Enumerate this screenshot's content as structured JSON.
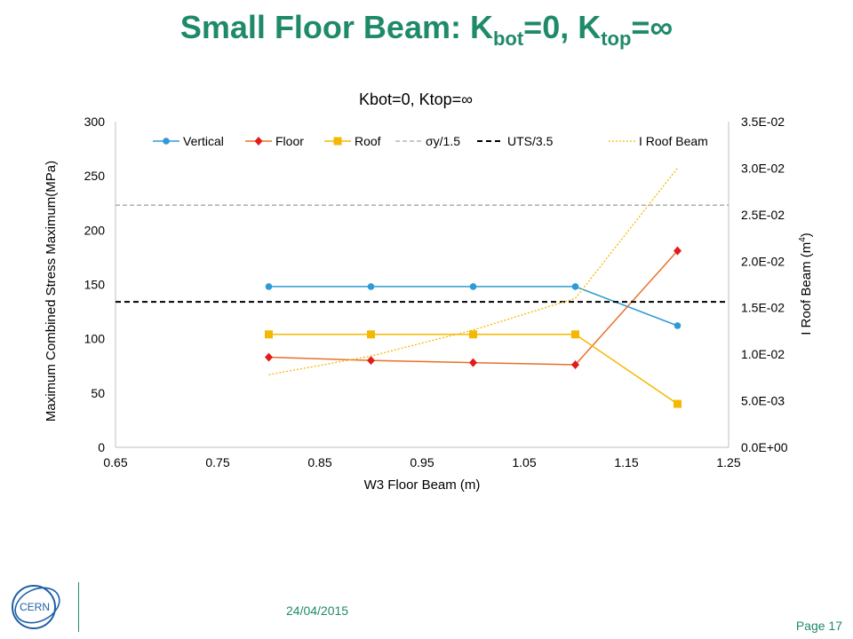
{
  "slide": {
    "title_main": "Small Floor Beam: K",
    "title_sub1": "bot",
    "title_mid": "=0, K",
    "title_sub2": "top",
    "title_end": "=∞",
    "date": "24/04/2015",
    "page": "Page 17",
    "logo_text": "CERN"
  },
  "chart_data": {
    "type": "line",
    "title": "Kbot=0, Ktop=∞",
    "xlabel": "W3 Floor Beam (m)",
    "ylabel": "Maximum Combined Stress Maximum(MPa)",
    "y2label_pre": "I Roof Beam (m",
    "y2label_sup": "4",
    "y2label_post": ")",
    "xlim": [
      0.65,
      1.25
    ],
    "ylim": [
      0,
      300
    ],
    "y2lim": [
      0,
      0.035
    ],
    "xticks": [
      "0.65",
      "0.75",
      "0.85",
      "0.95",
      "1.05",
      "1.15",
      "1.25"
    ],
    "yticks": [
      "0",
      "50",
      "100",
      "150",
      "200",
      "250",
      "300"
    ],
    "y2ticks": [
      "0.0E+00",
      "5.0E-03",
      "1.0E-02",
      "1.5E-02",
      "2.0E-02",
      "2.5E-02",
      "3.0E-02",
      "3.5E-02"
    ],
    "grid": false,
    "legend_position": "top",
    "x": [
      0.8,
      0.9,
      1.0,
      1.1,
      1.2
    ],
    "series": [
      {
        "name": "Vertical",
        "axis": "left",
        "color": "#2e9bd6",
        "marker": "circle",
        "values": [
          148,
          148,
          148,
          148,
          112
        ]
      },
      {
        "name": "Floor",
        "axis": "left",
        "color": "#e8702a",
        "marker_color": "#e31b1b",
        "marker": "diamond",
        "values": [
          83,
          80,
          78,
          76,
          181
        ]
      },
      {
        "name": "Roof",
        "axis": "left",
        "color": "#f5b800",
        "marker": "square",
        "values": [
          104,
          104,
          104,
          104,
          40
        ]
      },
      {
        "name": "σy/1.5",
        "axis": "left",
        "color": "#a6a6a6",
        "style": "dashed-thin",
        "hline": 223
      },
      {
        "name": "UTS/3.5",
        "axis": "left",
        "color": "#000000",
        "style": "dashed-thick",
        "hline": 134
      },
      {
        "name": "I Roof Beam",
        "axis": "right",
        "color": "#f5b800",
        "style": "dotted",
        "values": [
          0.0078,
          0.0098,
          0.0126,
          0.016,
          0.03
        ]
      }
    ]
  }
}
